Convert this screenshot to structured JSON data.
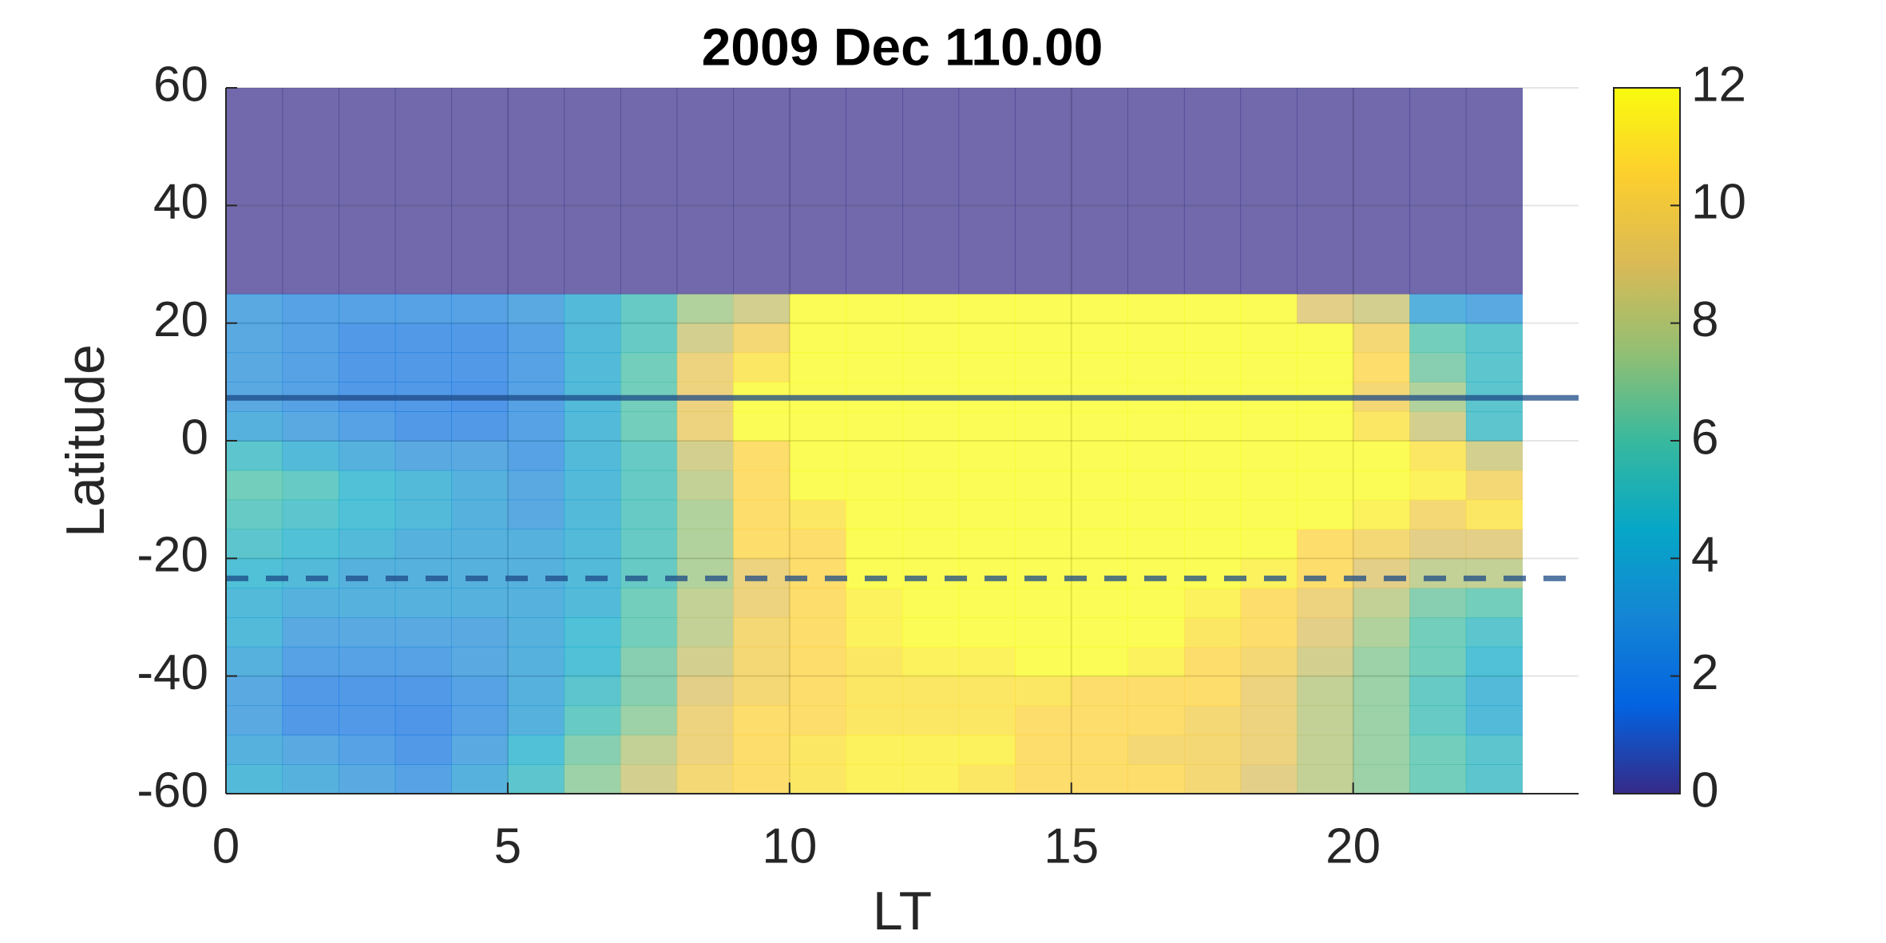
{
  "chart_data": {
    "type": "heatmap",
    "title": "2009 Dec   110.00",
    "x_label": "LT",
    "y_label": "Latitude",
    "x_edges": [
      0,
      1,
      2,
      3,
      4,
      5,
      6,
      7,
      8,
      9,
      10,
      11,
      12,
      13,
      14,
      15,
      16,
      17,
      18,
      19,
      20,
      21,
      22,
      23
    ],
    "y_edges": [
      -60,
      -55,
      -50,
      -45,
      -40,
      -35,
      -30,
      -25,
      -20,
      -15,
      -10,
      -5,
      0,
      5,
      10,
      15,
      20,
      25,
      60
    ],
    "values": [
      [
        4,
        3.5,
        3,
        3,
        3.5,
        4,
        4,
        4.5,
        5,
        5.5,
        6,
        5,
        3.5,
        3,
        3,
        3,
        3,
        0
      ],
      [
        3.5,
        3,
        2,
        2,
        2.5,
        3,
        3.5,
        4,
        4.5,
        5,
        5.5,
        4,
        3,
        2.5,
        2.5,
        2.5,
        2.5,
        0
      ],
      [
        3,
        2.5,
        2,
        2,
        2.5,
        3,
        3.5,
        3.5,
        4,
        4.5,
        4.5,
        3.5,
        2.5,
        2,
        2,
        2,
        2.5,
        0
      ],
      [
        2.5,
        2,
        1.8,
        2,
        2.5,
        3,
        3.5,
        3.5,
        3.5,
        4,
        4,
        3,
        2,
        2,
        2,
        2,
        2.5,
        0
      ],
      [
        3.5,
        3,
        2.5,
        2.5,
        3,
        3,
        3.5,
        3.5,
        3.5,
        3.5,
        3.5,
        3,
        2,
        1.8,
        2,
        2,
        2.5,
        0
      ],
      [
        5,
        4.5,
        3.5,
        3.5,
        3.5,
        3.5,
        3.5,
        3.5,
        3.5,
        3,
        3,
        2.5,
        2.5,
        2.5,
        2.5,
        2.5,
        3,
        0
      ],
      [
        7,
        6.5,
        5.5,
        5,
        4.5,
        4.5,
        4,
        4,
        4,
        4,
        4,
        4,
        4,
        4,
        4,
        4,
        4,
        0
      ],
      [
        8.5,
        8,
        7,
        6.5,
        6.5,
        6,
        6,
        5.5,
        5.5,
        5.5,
        5.5,
        5.5,
        6,
        6,
        6,
        5.5,
        5.5,
        0
      ],
      [
        10,
        9.5,
        9.5,
        9,
        8.5,
        8,
        8,
        7.5,
        7.5,
        7.5,
        8,
        8.5,
        9.5,
        9.5,
        9.5,
        8.5,
        7.5,
        0
      ],
      [
        10.5,
        10.5,
        10.5,
        10,
        10,
        10,
        9.5,
        9.5,
        10.5,
        10.5,
        10.5,
        10.5,
        12,
        12,
        11,
        10,
        8.5,
        0
      ],
      [
        11,
        11,
        10.5,
        10.5,
        10.5,
        10.5,
        10.5,
        10.5,
        10.5,
        11,
        12,
        12,
        12,
        12,
        12,
        12,
        12,
        0
      ],
      [
        11.5,
        11.5,
        11,
        11,
        11,
        11.5,
        11.5,
        12,
        12,
        12,
        12,
        12,
        12,
        12,
        12,
        12,
        12,
        0
      ],
      [
        11.5,
        11.5,
        11,
        11,
        11.5,
        12,
        12,
        12,
        12,
        12,
        12,
        12,
        12,
        12,
        12,
        12,
        12,
        0
      ],
      [
        11,
        11.5,
        11,
        11,
        11.5,
        12,
        12,
        12,
        12,
        12,
        12,
        12,
        12,
        12,
        12,
        12,
        12,
        0
      ],
      [
        10.5,
        10.5,
        10.5,
        11,
        12,
        12,
        12,
        12,
        12,
        12,
        12,
        12,
        12,
        12,
        12,
        12,
        12,
        0
      ],
      [
        10.5,
        10.5,
        10.5,
        10.5,
        12,
        12,
        12,
        12,
        12,
        12,
        12,
        12,
        12,
        12,
        12,
        12,
        12,
        0
      ],
      [
        10.5,
        10,
        10.5,
        10.5,
        11.5,
        12,
        12,
        12,
        12,
        12,
        12,
        12,
        12,
        12,
        12,
        12,
        12,
        0
      ],
      [
        10,
        10,
        10,
        10.5,
        10.5,
        11,
        11.5,
        12,
        12,
        12,
        12,
        12,
        12,
        12,
        12,
        12,
        12,
        0
      ],
      [
        9,
        9.5,
        9.5,
        9.5,
        10,
        10.5,
        10.5,
        11.5,
        12,
        12,
        12,
        12,
        12,
        12,
        12,
        12,
        12,
        0
      ],
      [
        8,
        8,
        8,
        8,
        8.5,
        9,
        9.5,
        10.5,
        10.5,
        12,
        12,
        12,
        12,
        12,
        12,
        12,
        9,
        0
      ],
      [
        7,
        7,
        7,
        7,
        7,
        7.5,
        8,
        9,
        10,
        11.5,
        12,
        12,
        11,
        10,
        10.5,
        10,
        8.5,
        0
      ],
      [
        6,
        6,
        5.5,
        5.5,
        6,
        6,
        6.5,
        8,
        9,
        10,
        11.5,
        11,
        8.5,
        7.5,
        6.5,
        6,
        3.5,
        0
      ],
      [
        5,
        5,
        4,
        4,
        4.5,
        5,
        6,
        8,
        9,
        11,
        10,
        8.5,
        5,
        5,
        5,
        5,
        3,
        0
      ]
    ],
    "xlim": [
      0,
      24
    ],
    "ylim": [
      -60,
      60
    ],
    "xticks": [
      0,
      5,
      10,
      15,
      20
    ],
    "yticks": [
      -60,
      -40,
      -20,
      0,
      20,
      40,
      60
    ],
    "clim": [
      0,
      12
    ],
    "cticks": [
      0,
      2,
      4,
      6,
      8,
      10,
      12
    ],
    "colormap": [
      "#352a87",
      "#0363e1",
      "#1485d4",
      "#06a7c6",
      "#38b99e",
      "#92bf73",
      "#d9ba56",
      "#fcce2e",
      "#f9fb0e"
    ],
    "alpha": 0.7,
    "grid": true,
    "lines": [
      {
        "y": 7.3,
        "dashed": false,
        "color": "#1c4a86"
      },
      {
        "y": -23.4,
        "dashed": true,
        "color": "#1c4a86"
      }
    ]
  }
}
